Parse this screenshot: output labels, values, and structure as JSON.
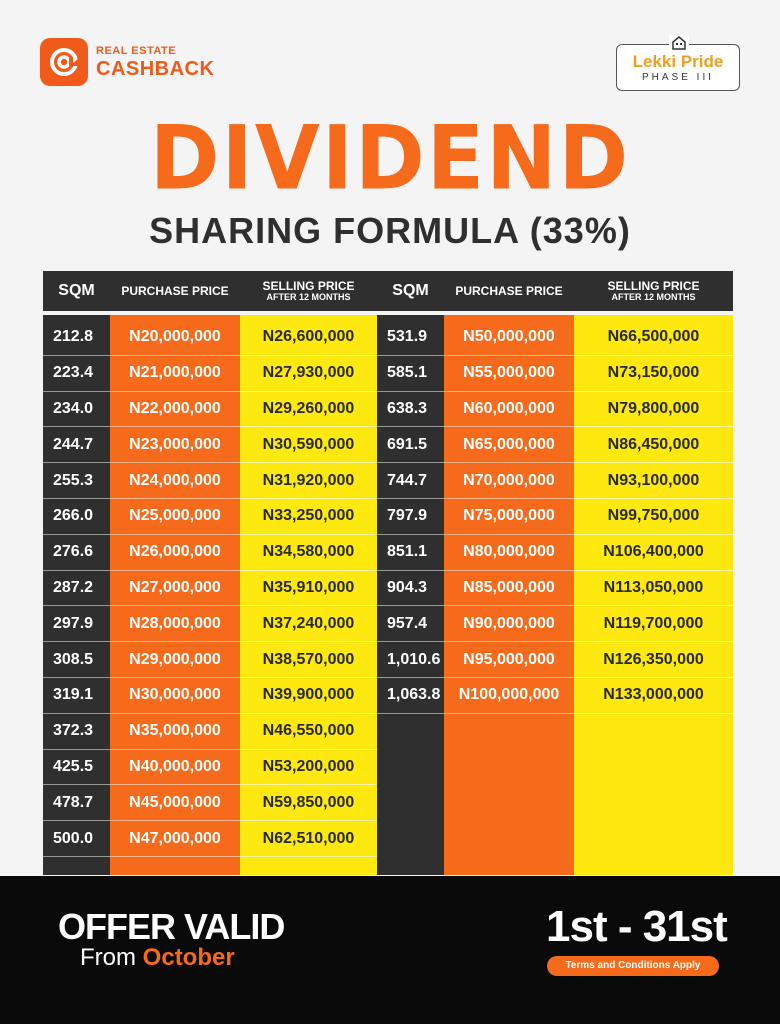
{
  "brand": {
    "small": "REAL ESTATE",
    "big": "CASHBACK",
    "icon": "cashback-logo-icon"
  },
  "lekki": {
    "name": "Lekki Pride",
    "phase": "PHASE III",
    "icon": "house-icon"
  },
  "title": {
    "main": "DIVIDEND",
    "sub": "SHARING FORMULA (33%)"
  },
  "table": {
    "headers": {
      "sqm": "SQM",
      "purchase": "PURCHASE PRICE",
      "selling": "SELLING PRICE",
      "selling_sub": "AFTER 12 MONTHS"
    },
    "left": [
      {
        "sqm": "212.8",
        "purchase": "N20,000,000",
        "selling": "N26,600,000"
      },
      {
        "sqm": "223.4",
        "purchase": "N21,000,000",
        "selling": "N27,930,000"
      },
      {
        "sqm": "234.0",
        "purchase": "N22,000,000",
        "selling": "N29,260,000"
      },
      {
        "sqm": "244.7",
        "purchase": "N23,000,000",
        "selling": "N30,590,000"
      },
      {
        "sqm": "255.3",
        "purchase": "N24,000,000",
        "selling": "N31,920,000"
      },
      {
        "sqm": "266.0",
        "purchase": "N25,000,000",
        "selling": "N33,250,000"
      },
      {
        "sqm": "276.6",
        "purchase": "N26,000,000",
        "selling": "N34,580,000"
      },
      {
        "sqm": "287.2",
        "purchase": "N27,000,000",
        "selling": "N35,910,000"
      },
      {
        "sqm": "297.9",
        "purchase": "N28,000,000",
        "selling": "N37,240,000"
      },
      {
        "sqm": "308.5",
        "purchase": "N29,000,000",
        "selling": "N38,570,000"
      },
      {
        "sqm": "319.1",
        "purchase": "N30,000,000",
        "selling": "N39,900,000"
      },
      {
        "sqm": "372.3",
        "purchase": "N35,000,000",
        "selling": "N46,550,000"
      },
      {
        "sqm": "425.5",
        "purchase": "N40,000,000",
        "selling": "N53,200,000"
      },
      {
        "sqm": "478.7",
        "purchase": "N45,000,000",
        "selling": "N59,850,000"
      },
      {
        "sqm": "500.0",
        "purchase": "N47,000,000",
        "selling": "N62,510,000"
      }
    ],
    "right": [
      {
        "sqm": "531.9",
        "purchase": "N50,000,000",
        "selling": "N66,500,000"
      },
      {
        "sqm": "585.1",
        "purchase": "N55,000,000",
        "selling": "N73,150,000"
      },
      {
        "sqm": "638.3",
        "purchase": "N60,000,000",
        "selling": "N79,800,000"
      },
      {
        "sqm": "691.5",
        "purchase": "N65,000,000",
        "selling": "N86,450,000"
      },
      {
        "sqm": "744.7",
        "purchase": "N70,000,000",
        "selling": "N93,100,000"
      },
      {
        "sqm": "797.9",
        "purchase": "N75,000,000",
        "selling": "N99,750,000"
      },
      {
        "sqm": "851.1",
        "purchase": "N80,000,000",
        "selling": "N106,400,000"
      },
      {
        "sqm": "904.3",
        "purchase": "N85,000,000",
        "selling": "N113,050,000"
      },
      {
        "sqm": "957.4",
        "purchase": "N90,000,000",
        "selling": "N119,700,000"
      },
      {
        "sqm": "1,010.6",
        "purchase": "N95,000,000",
        "selling": "N126,350,000"
      },
      {
        "sqm": "1,063.8",
        "purchase": "N100,000,000",
        "selling": "N133,000,000"
      }
    ]
  },
  "footer": {
    "offer_line1": "OFFER VALID",
    "offer_from": "From",
    "offer_month": "October",
    "dates": "1st - 31st",
    "terms": "Terms and Conditions Apply"
  },
  "colors": {
    "orange": "#f56a1b",
    "yellow": "#fde910",
    "dark": "#2f2f2f",
    "black": "#0a0a0a"
  }
}
